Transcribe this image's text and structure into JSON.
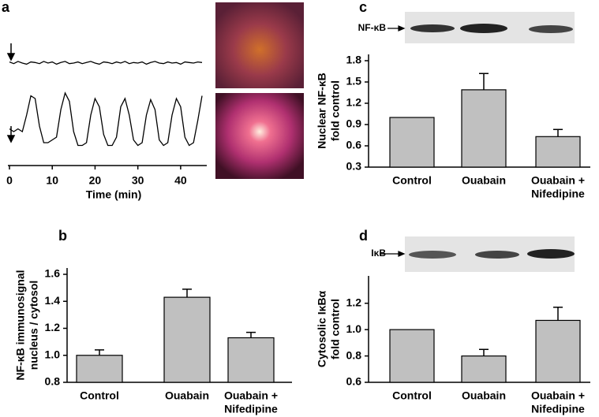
{
  "chart_data": [
    {
      "type": "line",
      "label": "a",
      "xlabel": "Time (min)",
      "xlim": [
        0,
        45
      ],
      "xticks": [
        0,
        10,
        20,
        30,
        40
      ],
      "x": [
        0,
        1,
        2,
        3,
        4,
        5,
        6,
        7,
        8,
        9,
        10,
        11,
        12,
        13,
        14,
        15,
        16,
        17,
        18,
        19,
        20,
        21,
        22,
        23,
        24,
        25,
        26,
        27,
        28,
        29,
        30,
        31,
        32,
        33,
        34,
        35,
        36,
        37,
        38,
        39,
        40,
        41,
        42,
        43,
        44,
        45
      ],
      "series": [
        {
          "color": "#000000",
          "values": [
            0.02,
            -0.01,
            0.03,
            0.0,
            -0.02,
            0.02,
            0.01,
            -0.01,
            0.03,
            0.0,
            0.02,
            -0.02,
            0.01,
            0.03,
            -0.01,
            0.0,
            0.02,
            -0.01,
            0.01,
            0.03,
            0.0,
            -0.02,
            0.02,
            0.01,
            -0.01,
            0.02,
            0.0,
            0.03,
            -0.01,
            0.01,
            0.0,
            0.02,
            -0.02,
            0.01,
            0.03,
            0.0,
            -0.01,
            0.02,
            0.0,
            0.01,
            -0.02,
            0.02,
            0.01,
            0.0,
            0.02,
            0.01
          ]
        },
        {
          "color": "#000000",
          "values": [
            0.35,
            0.3,
            0.35,
            0.3,
            0.6,
            0.95,
            0.9,
            0.4,
            0.1,
            0.1,
            0.15,
            0.2,
            0.7,
            1.0,
            0.85,
            0.3,
            0.05,
            0.05,
            0.1,
            0.6,
            0.9,
            0.75,
            0.25,
            0.05,
            0.05,
            0.2,
            0.75,
            0.9,
            0.6,
            0.15,
            0.05,
            0.1,
            0.6,
            0.88,
            0.7,
            0.15,
            0.05,
            0.1,
            0.6,
            0.9,
            0.75,
            0.2,
            0.05,
            0.1,
            0.5,
            0.95
          ]
        }
      ]
    },
    {
      "type": "bar",
      "label": "b",
      "ylabel": [
        "NF-κB immunosignal",
        "nucleus / cytosol"
      ],
      "categories": [
        [
          "Control"
        ],
        [
          "Ouabain"
        ],
        [
          "Ouabain +",
          "Nifedipine"
        ]
      ],
      "values": [
        1.0,
        1.43,
        1.13
      ],
      "errors": [
        0.04,
        0.06,
        0.04
      ],
      "color": "#c0c0c0",
      "ylim": [
        0.8,
        1.6
      ],
      "yticks": [
        0.8,
        {
          "value": 1.0,
          "label": "1.0"
        },
        1.2,
        1.4,
        1.6
      ]
    },
    {
      "type": "bar",
      "label": "c",
      "blot_label": "NF-κB",
      "ylabel": [
        "Nuclear NF-κB",
        "fold control"
      ],
      "categories": [
        [
          "Control"
        ],
        [
          "Ouabain"
        ],
        [
          "Ouabain +",
          "Nifedipine"
        ]
      ],
      "values": [
        1.0,
        1.39,
        0.73
      ],
      "errors": [
        null,
        0.23,
        0.1
      ],
      "color": "#c0c0c0",
      "ylim": [
        0.3,
        1.8
      ],
      "yticks": [
        0.3,
        0.6,
        0.9,
        1.2,
        1.5,
        1.8
      ]
    },
    {
      "type": "bar",
      "label": "d",
      "blot_label": "IκB",
      "ylabel": [
        "Cytosolic IκBα",
        "fold control"
      ],
      "categories": [
        [
          "Control"
        ],
        [
          "Ouabain"
        ],
        [
          "Ouabain +",
          "Nifedipine"
        ]
      ],
      "values": [
        1.0,
        0.8,
        1.07
      ],
      "errors": [
        null,
        0.05,
        0.1
      ],
      "color": "#c0c0c0",
      "ylim": [
        0.6,
        1.3
      ],
      "yticks": [
        0.6,
        0.8,
        {
          "value": 1.0,
          "label": "1.0"
        },
        1.2
      ]
    }
  ]
}
